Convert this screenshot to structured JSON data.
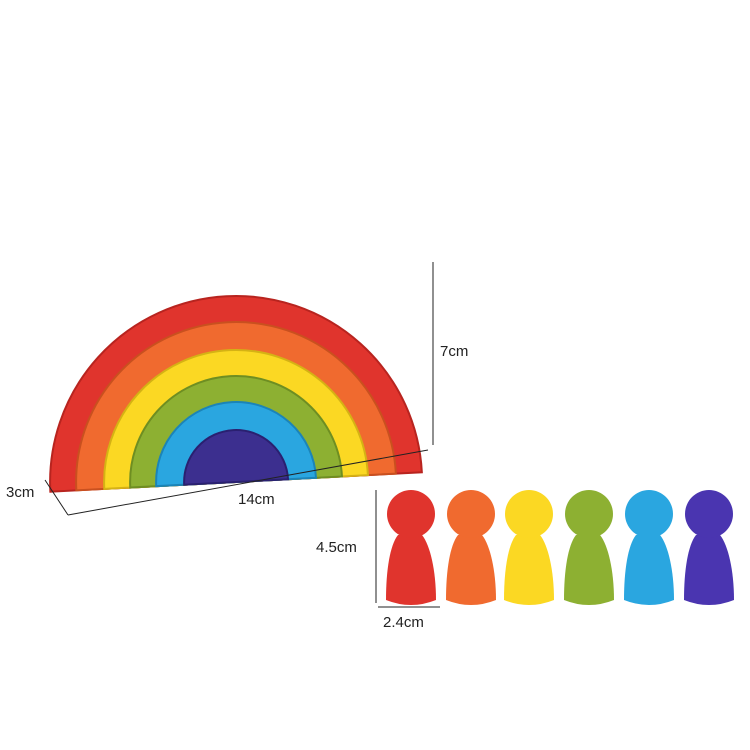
{
  "labels": {
    "height": "7cm",
    "depth": "3cm",
    "width": "14cm",
    "peg_height": "4.5cm",
    "peg_width": "2.4cm"
  }
}
